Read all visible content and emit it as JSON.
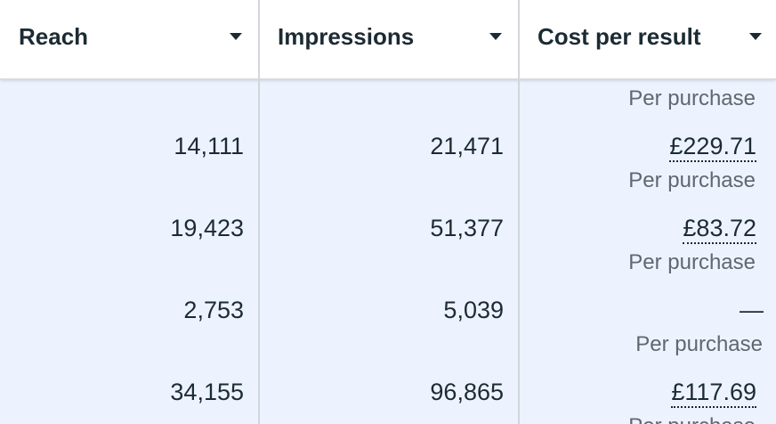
{
  "columns": [
    {
      "title": "Reach"
    },
    {
      "title": "Impressions"
    },
    {
      "title": "Cost per result"
    }
  ],
  "top_subtext": "Per purchase",
  "rows": [
    {
      "reach": "14,111",
      "impressions": "21,471",
      "cost": "£229.71",
      "cost_sub": "Per purchase"
    },
    {
      "reach": "19,423",
      "impressions": "51,377",
      "cost": "£83.72",
      "cost_sub": "Per purchase"
    },
    {
      "reach": "2,753",
      "impressions": "5,039",
      "cost": "—",
      "cost_sub": "Per purchase"
    },
    {
      "reach": "34,155",
      "impressions": "96,865",
      "cost": "£117.69",
      "cost_sub": "Per purchase"
    }
  ],
  "colors": {
    "header_bg": "#ffffff",
    "row_selected_bg": "#edf3fe",
    "text": "#1c2b33",
    "subtext": "#606770",
    "divider": "#d3d7db"
  }
}
